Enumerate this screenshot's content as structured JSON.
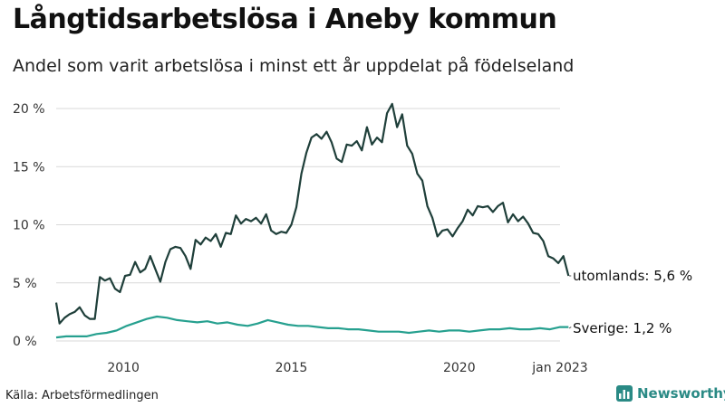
{
  "header": {
    "title": "Långtidsarbetslösa i Aneby kommun",
    "subtitle": "Andel som varit arbetslösa i minst ett år uppdelat på födelseland"
  },
  "footer": {
    "source": "Källa: Arbetsförmedlingen",
    "brand": "Newsworthy"
  },
  "colors": {
    "utomlands": "#1f3f3a",
    "sverige": "#26a08f",
    "grid": "#d9d9d9",
    "brand": "#2a8a85"
  },
  "chart_data": {
    "type": "line",
    "title": "Långtidsarbetslösa i Aneby kommun",
    "subtitle": "Andel som varit arbetslösa i minst ett år uppdelat på födelseland",
    "xlabel": "",
    "ylabel": "",
    "ylim": [
      0,
      20
    ],
    "xlim": [
      2008.0,
      2023.0
    ],
    "y_ticks": [
      0,
      5,
      10,
      15,
      20
    ],
    "y_tick_labels": [
      "0 %",
      "5 %",
      "10 %",
      "15 %",
      "20 %"
    ],
    "x_ticks": [
      2010,
      2015,
      2020,
      2023.0
    ],
    "x_tick_labels": [
      "2010",
      "2015",
      "2020",
      "jan 2023"
    ],
    "grid": true,
    "legend": "end-labels",
    "series": [
      {
        "key": "utomlands",
        "end_label": "utomlands: 5,6 %",
        "points": [
          [
            2008.0,
            3.3
          ],
          [
            2008.1,
            1.5
          ],
          [
            2008.25,
            2.0
          ],
          [
            2008.4,
            2.3
          ],
          [
            2008.55,
            2.5
          ],
          [
            2008.7,
            2.9
          ],
          [
            2008.85,
            2.2
          ],
          [
            2009.0,
            1.9
          ],
          [
            2009.15,
            1.9
          ],
          [
            2009.3,
            5.5
          ],
          [
            2009.45,
            5.2
          ],
          [
            2009.6,
            5.4
          ],
          [
            2009.75,
            4.5
          ],
          [
            2009.9,
            4.2
          ],
          [
            2010.05,
            5.6
          ],
          [
            2010.2,
            5.7
          ],
          [
            2010.35,
            6.8
          ],
          [
            2010.5,
            5.9
          ],
          [
            2010.65,
            6.2
          ],
          [
            2010.8,
            7.3
          ],
          [
            2010.95,
            6.2
          ],
          [
            2011.1,
            5.1
          ],
          [
            2011.25,
            6.8
          ],
          [
            2011.4,
            7.9
          ],
          [
            2011.55,
            8.1
          ],
          [
            2011.7,
            8.0
          ],
          [
            2011.85,
            7.3
          ],
          [
            2012.0,
            6.2
          ],
          [
            2012.15,
            8.7
          ],
          [
            2012.3,
            8.3
          ],
          [
            2012.45,
            8.9
          ],
          [
            2012.6,
            8.6
          ],
          [
            2012.75,
            9.2
          ],
          [
            2012.9,
            8.1
          ],
          [
            2013.05,
            9.3
          ],
          [
            2013.2,
            9.2
          ],
          [
            2013.35,
            10.8
          ],
          [
            2013.5,
            10.1
          ],
          [
            2013.65,
            10.5
          ],
          [
            2013.8,
            10.3
          ],
          [
            2013.95,
            10.6
          ],
          [
            2014.1,
            10.1
          ],
          [
            2014.25,
            10.9
          ],
          [
            2014.4,
            9.5
          ],
          [
            2014.55,
            9.2
          ],
          [
            2014.7,
            9.4
          ],
          [
            2014.85,
            9.3
          ],
          [
            2015.0,
            10.0
          ],
          [
            2015.15,
            11.5
          ],
          [
            2015.3,
            14.4
          ],
          [
            2015.45,
            16.2
          ],
          [
            2015.6,
            17.5
          ],
          [
            2015.75,
            17.8
          ],
          [
            2015.9,
            17.4
          ],
          [
            2016.05,
            18.0
          ],
          [
            2016.2,
            17.1
          ],
          [
            2016.35,
            15.7
          ],
          [
            2016.5,
            15.4
          ],
          [
            2016.65,
            16.9
          ],
          [
            2016.8,
            16.8
          ],
          [
            2016.95,
            17.2
          ],
          [
            2017.1,
            16.4
          ],
          [
            2017.25,
            18.4
          ],
          [
            2017.4,
            16.9
          ],
          [
            2017.55,
            17.5
          ],
          [
            2017.7,
            17.1
          ],
          [
            2017.85,
            19.6
          ],
          [
            2018.0,
            20.4
          ],
          [
            2018.15,
            18.4
          ],
          [
            2018.3,
            19.5
          ],
          [
            2018.45,
            16.8
          ],
          [
            2018.6,
            16.1
          ],
          [
            2018.75,
            14.4
          ],
          [
            2018.9,
            13.8
          ],
          [
            2019.05,
            11.6
          ],
          [
            2019.2,
            10.6
          ],
          [
            2019.35,
            9.0
          ],
          [
            2019.5,
            9.5
          ],
          [
            2019.65,
            9.6
          ],
          [
            2019.8,
            9.0
          ],
          [
            2019.95,
            9.7
          ],
          [
            2020.1,
            10.3
          ],
          [
            2020.25,
            11.3
          ],
          [
            2020.4,
            10.8
          ],
          [
            2020.55,
            11.6
          ],
          [
            2020.7,
            11.5
          ],
          [
            2020.85,
            11.6
          ],
          [
            2021.0,
            11.1
          ],
          [
            2021.15,
            11.6
          ],
          [
            2021.3,
            11.9
          ],
          [
            2021.45,
            10.2
          ],
          [
            2021.6,
            10.9
          ],
          [
            2021.75,
            10.3
          ],
          [
            2021.9,
            10.7
          ],
          [
            2022.05,
            10.1
          ],
          [
            2022.2,
            9.3
          ],
          [
            2022.35,
            9.2
          ],
          [
            2022.5,
            8.6
          ],
          [
            2022.65,
            7.3
          ],
          [
            2022.8,
            7.1
          ],
          [
            2022.95,
            6.7
          ],
          [
            2023.1,
            7.3
          ],
          [
            2023.25,
            5.6
          ]
        ]
      },
      {
        "key": "sverige",
        "end_label": "Sverige: 1,2 %",
        "points": [
          [
            2008.0,
            0.3
          ],
          [
            2008.3,
            0.4
          ],
          [
            2008.6,
            0.4
          ],
          [
            2008.9,
            0.4
          ],
          [
            2009.2,
            0.6
          ],
          [
            2009.5,
            0.7
          ],
          [
            2009.8,
            0.9
          ],
          [
            2010.1,
            1.3
          ],
          [
            2010.4,
            1.6
          ],
          [
            2010.7,
            1.9
          ],
          [
            2011.0,
            2.1
          ],
          [
            2011.3,
            2.0
          ],
          [
            2011.6,
            1.8
          ],
          [
            2011.9,
            1.7
          ],
          [
            2012.2,
            1.6
          ],
          [
            2012.5,
            1.7
          ],
          [
            2012.8,
            1.5
          ],
          [
            2013.1,
            1.6
          ],
          [
            2013.4,
            1.4
          ],
          [
            2013.7,
            1.3
          ],
          [
            2014.0,
            1.5
          ],
          [
            2014.3,
            1.8
          ],
          [
            2014.6,
            1.6
          ],
          [
            2014.9,
            1.4
          ],
          [
            2015.2,
            1.3
          ],
          [
            2015.5,
            1.3
          ],
          [
            2015.8,
            1.2
          ],
          [
            2016.1,
            1.1
          ],
          [
            2016.4,
            1.1
          ],
          [
            2016.7,
            1.0
          ],
          [
            2017.0,
            1.0
          ],
          [
            2017.3,
            0.9
          ],
          [
            2017.6,
            0.8
          ],
          [
            2017.9,
            0.8
          ],
          [
            2018.2,
            0.8
          ],
          [
            2018.5,
            0.7
          ],
          [
            2018.8,
            0.8
          ],
          [
            2019.1,
            0.9
          ],
          [
            2019.4,
            0.8
          ],
          [
            2019.7,
            0.9
          ],
          [
            2020.0,
            0.9
          ],
          [
            2020.3,
            0.8
          ],
          [
            2020.6,
            0.9
          ],
          [
            2020.9,
            1.0
          ],
          [
            2021.2,
            1.0
          ],
          [
            2021.5,
            1.1
          ],
          [
            2021.8,
            1.0
          ],
          [
            2022.1,
            1.0
          ],
          [
            2022.4,
            1.1
          ],
          [
            2022.7,
            1.0
          ],
          [
            2023.0,
            1.2
          ],
          [
            2023.25,
            1.2
          ]
        ]
      }
    ]
  }
}
